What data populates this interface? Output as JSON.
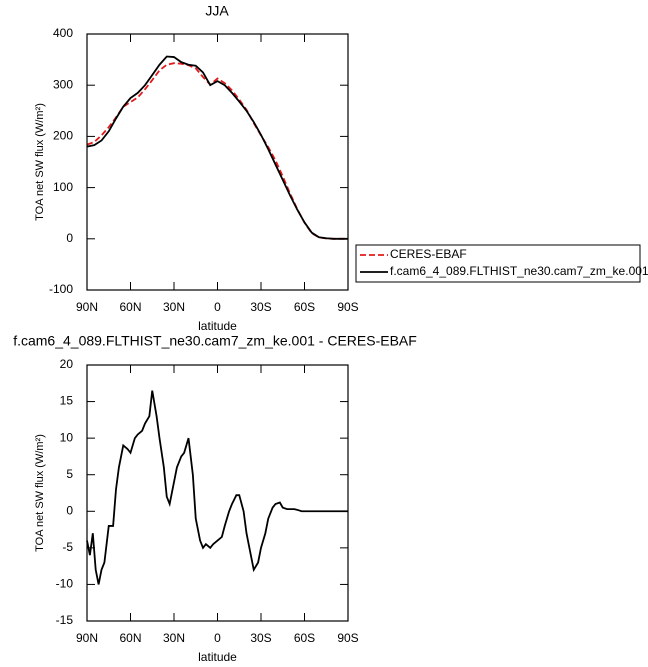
{
  "chart_data": [
    {
      "type": "line",
      "title": "JJA",
      "xlabel": "latitude",
      "ylabel": "TOA net SW flux (W/m²)",
      "x": [
        90,
        85,
        80,
        75,
        70,
        65,
        60,
        55,
        50,
        45,
        40,
        35,
        30,
        25,
        20,
        15,
        10,
        5,
        0,
        -5,
        -10,
        -15,
        -20,
        -25,
        -30,
        -35,
        -40,
        -45,
        -50,
        -55,
        -60,
        -65,
        -70,
        -75,
        -80,
        -85,
        -90
      ],
      "xlim": [
        90,
        -90
      ],
      "xticks": [
        {
          "value": 90,
          "label": "90N"
        },
        {
          "value": 60,
          "label": "60N"
        },
        {
          "value": 30,
          "label": "30N"
        },
        0,
        {
          "value": -30,
          "label": "30S"
        },
        {
          "value": -60,
          "label": "60S"
        },
        {
          "value": -90,
          "label": "90S"
        }
      ],
      "ylim": [
        -100,
        400
      ],
      "yticks": [
        -100,
        0,
        100,
        200,
        300,
        400
      ],
      "legend": "outside-lower-right",
      "series": [
        {
          "name": "CERES-EBAF",
          "color": "#e31a1c",
          "dashed": true,
          "values": [
            184,
            189,
            202,
            218,
            237,
            258,
            267,
            276,
            292,
            310,
            329,
            340,
            343,
            342,
            339,
            333,
            316,
            301,
            313,
            304,
            290,
            272,
            252,
            226,
            202,
            179,
            153,
            122,
            89,
            58,
            31.5,
            11,
            2.7,
            0.7,
            0,
            0,
            0
          ]
        },
        {
          "name": "f.cam6_4_089.FLTHIST_ne30.cam7_zm_ke.001",
          "color": "#000000",
          "dashed": false,
          "values": [
            180,
            183,
            192,
            210,
            235,
            258,
            275,
            285,
            300,
            320,
            340,
            356,
            355,
            345,
            340,
            338,
            325,
            300,
            308,
            300,
            285,
            268,
            250,
            228,
            203,
            175,
            145,
            115,
            85,
            57,
            32,
            12,
            3,
            1,
            0,
            0,
            0
          ]
        }
      ]
    },
    {
      "type": "line",
      "title": "f.cam6_4_089.FLTHIST_ne30.cam7_zm_ke.001 - CERES-EBAF",
      "xlabel": "latitude",
      "ylabel": "TOA net SW flux (W/m²)",
      "x": [
        90,
        88,
        86,
        84,
        82,
        80,
        78,
        75,
        72,
        70,
        68,
        65,
        62,
        60,
        57,
        55,
        52,
        50,
        47,
        45,
        42,
        40,
        37,
        35,
        33,
        30,
        28,
        25,
        23,
        20,
        17,
        15,
        12,
        10,
        8,
        5,
        3,
        0,
        -3,
        -5,
        -8,
        -10,
        -13,
        -15,
        -18,
        -20,
        -23,
        -25,
        -28,
        -30,
        -33,
        -35,
        -38,
        -40,
        -43,
        -45,
        -48,
        -50,
        -53,
        -55,
        -58,
        -60,
        -63,
        -65,
        -68,
        -70,
        -75,
        -80,
        -85,
        -90
      ],
      "xlim": [
        90,
        -90
      ],
      "xticks": [
        {
          "value": 90,
          "label": "90N"
        },
        {
          "value": 60,
          "label": "60N"
        },
        {
          "value": 30,
          "label": "30N"
        },
        0,
        {
          "value": -30,
          "label": "30S"
        },
        {
          "value": -60,
          "label": "60S"
        },
        {
          "value": -90,
          "label": "90S"
        }
      ],
      "ylim": [
        -15,
        20
      ],
      "yticks": [
        -15,
        -10,
        -5,
        0,
        5,
        10,
        15,
        20
      ],
      "color": "#000000",
      "values": [
        -4,
        -6,
        -3,
        -8,
        -10,
        -8,
        -7,
        -2,
        -2,
        3,
        6,
        9,
        8.5,
        8,
        10,
        10.5,
        11,
        12,
        13,
        16.5,
        13,
        10,
        6,
        2,
        1,
        4,
        6,
        7.5,
        8,
        10,
        5,
        -1,
        -4,
        -5,
        -4.5,
        -5,
        -4.5,
        -4,
        -3.5,
        -2,
        0,
        1,
        2.2,
        2.2,
        0,
        -3,
        -6,
        -8,
        -7,
        -5,
        -3,
        -1,
        0.5,
        1,
        1.2,
        0.5,
        0.3,
        0.3,
        0.3,
        0.2,
        0,
        0,
        0,
        0,
        0,
        0,
        0,
        0,
        0,
        0
      ]
    }
  ]
}
